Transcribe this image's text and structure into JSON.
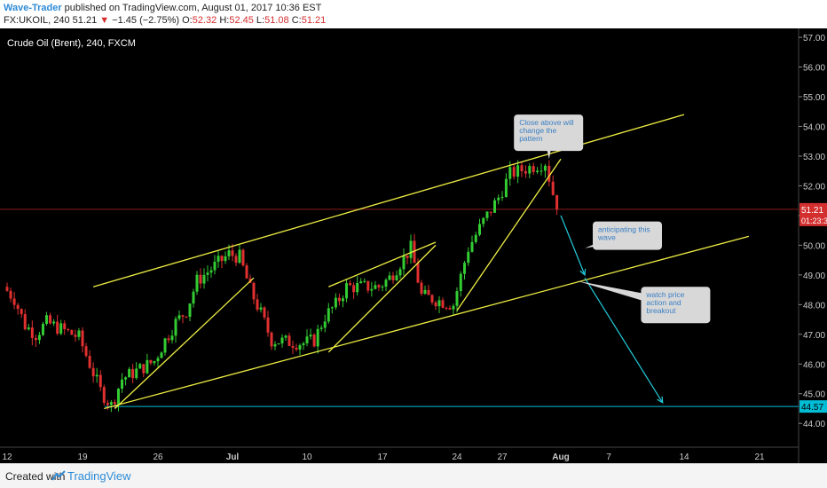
{
  "header": {
    "author": "Wave-Trader",
    "published_text": " published on TradingView.com, August 01, 2017 10:36 EST",
    "symbol": "FX:UKOIL, 240",
    "last": "51.21",
    "arrow": "▼",
    "change": "−1.45 (−2.75%)",
    "o_label": "O:",
    "o_value": "52.32",
    "h_label": "H:",
    "h_value": "52.45",
    "l_label": "L:",
    "l_value": "51.08",
    "c_label": "C:",
    "c_value": "51.21"
  },
  "footer": {
    "created_with": "Created with",
    "brand": "TradingView"
  },
  "colors": {
    "up": "#33cc33",
    "down": "#e03030",
    "trendline": "#eeee44",
    "projection": "#22ccdd",
    "support": "#00bcd4",
    "price_line": "#8b1a1a",
    "price_tag": "#d32f2f",
    "axis_text": "#cccccc"
  },
  "chart_data": {
    "type": "candlestick",
    "title": "Crude Oil (Brent), 240, FXCM",
    "ylim": [
      43.2,
      57.3
    ],
    "y_ticks": [
      "44.00",
      "45.00",
      "46.00",
      "47.00",
      "48.00",
      "49.00",
      "50.00",
      "51.00",
      "52.00",
      "53.00",
      "54.00",
      "55.00",
      "56.00",
      "57.00"
    ],
    "x_ticks": [
      {
        "label": "12",
        "bold": false
      },
      {
        "label": "19",
        "bold": false
      },
      {
        "label": "26",
        "bold": false
      },
      {
        "label": "Jul",
        "bold": true
      },
      {
        "label": "10",
        "bold": false
      },
      {
        "label": "17",
        "bold": false
      },
      {
        "label": "24",
        "bold": false
      },
      {
        "label": "27",
        "bold": false
      },
      {
        "label": "Aug",
        "bold": true
      },
      {
        "label": "7",
        "bold": false
      },
      {
        "label": "14",
        "bold": false
      },
      {
        "label": "21",
        "bold": false
      }
    ],
    "x_tick_dates": [
      "2017-06-12",
      "2017-06-19",
      "2017-06-26",
      "2017-07-03",
      "2017-07-10",
      "2017-07-17",
      "2017-07-24",
      "2017-07-27",
      "2017-08-01",
      "2017-08-07",
      "2017-08-14",
      "2017-08-21"
    ],
    "last_price": {
      "value": "51.21",
      "y": 51.21,
      "countdown": "01:23:3"
    },
    "support_level": {
      "value": "44.57",
      "y": 44.57
    },
    "price_path": [
      [
        "2017-06-12",
        48.6
      ],
      [
        "2017-06-13",
        48.2
      ],
      [
        "2017-06-14",
        47.3
      ],
      [
        "2017-06-15",
        47.0
      ],
      [
        "2017-06-16",
        47.4
      ],
      [
        "2017-06-19",
        46.9
      ],
      [
        "2017-06-20",
        46.0
      ],
      [
        "2017-06-21",
        45.1
      ],
      [
        "2017-06-22",
        44.6
      ],
      [
        "2017-06-23",
        45.5
      ],
      [
        "2017-06-26",
        46.1
      ],
      [
        "2017-06-27",
        46.8
      ],
      [
        "2017-06-28",
        47.4
      ],
      [
        "2017-06-29",
        47.8
      ],
      [
        "2017-06-30",
        48.8
      ],
      [
        "2017-07-03",
        49.7
      ],
      [
        "2017-07-04",
        49.6
      ],
      [
        "2017-07-05",
        48.5
      ],
      [
        "2017-07-06",
        47.7
      ],
      [
        "2017-07-07",
        46.8
      ],
      [
        "2017-07-10",
        46.7
      ],
      [
        "2017-07-11",
        46.8
      ],
      [
        "2017-07-12",
        47.6
      ],
      [
        "2017-07-13",
        48.0
      ],
      [
        "2017-07-14",
        48.6
      ],
      [
        "2017-07-17",
        48.6
      ],
      [
        "2017-07-18",
        48.9
      ],
      [
        "2017-07-19",
        49.4
      ],
      [
        "2017-07-20",
        49.9
      ],
      [
        "2017-07-21",
        48.3
      ],
      [
        "2017-07-24",
        48.0
      ],
      [
        "2017-07-25",
        49.9
      ],
      [
        "2017-07-26",
        50.8
      ],
      [
        "2017-07-27",
        51.6
      ],
      [
        "2017-07-28",
        52.4
      ],
      [
        "2017-07-31",
        52.8
      ],
      [
        "2017-08-01",
        51.21
      ]
    ],
    "trendlines": [
      {
        "name": "channel-upper",
        "from": [
          "2017-06-20",
          48.6
        ],
        "to": [
          "2017-08-14",
          54.4
        ]
      },
      {
        "name": "channel-lower",
        "from": [
          "2017-06-21",
          44.5
        ],
        "to": [
          "2017-08-20",
          50.3
        ]
      },
      {
        "name": "rising-wedge-1",
        "from": [
          "2017-06-22",
          44.5
        ],
        "to": [
          "2017-07-05",
          48.9
        ]
      },
      {
        "name": "rising-wedge-2-upper",
        "from": [
          "2017-07-12",
          48.6
        ],
        "to": [
          "2017-07-22",
          50.1
        ]
      },
      {
        "name": "rising-wedge-2-lower",
        "from": [
          "2017-07-12",
          46.4
        ],
        "to": [
          "2017-07-22",
          50.0
        ]
      },
      {
        "name": "rising-wedge-3",
        "from": [
          "2017-07-24",
          47.8
        ],
        "to": [
          "2017-08-01",
          52.9
        ]
      }
    ],
    "projections": [
      {
        "from": [
          "2017-08-01",
          51.0
        ],
        "to": [
          "2017-08-04",
          49.0
        ]
      },
      {
        "from": [
          "2017-08-04",
          48.9
        ],
        "to": [
          "2017-08-12",
          44.7
        ]
      }
    ],
    "annotations": [
      {
        "text": [
          "Close above will",
          "change the",
          "pattern"
        ],
        "box_at": [
          "2017-07-28",
          54.4
        ],
        "pointer_to": [
          "2017-07-31",
          52.9
        ]
      },
      {
        "text": [
          "anticipating this",
          "wave"
        ],
        "box_at": [
          "2017-08-05",
          50.8
        ],
        "pointer_to": [
          "2017-08-04",
          49.9
        ]
      },
      {
        "text": [
          "watch price",
          "action and",
          "breakout"
        ],
        "box_at": [
          "2017-08-10",
          48.6
        ],
        "pointer_to": [
          "2017-08-03",
          48.8
        ]
      }
    ]
  }
}
